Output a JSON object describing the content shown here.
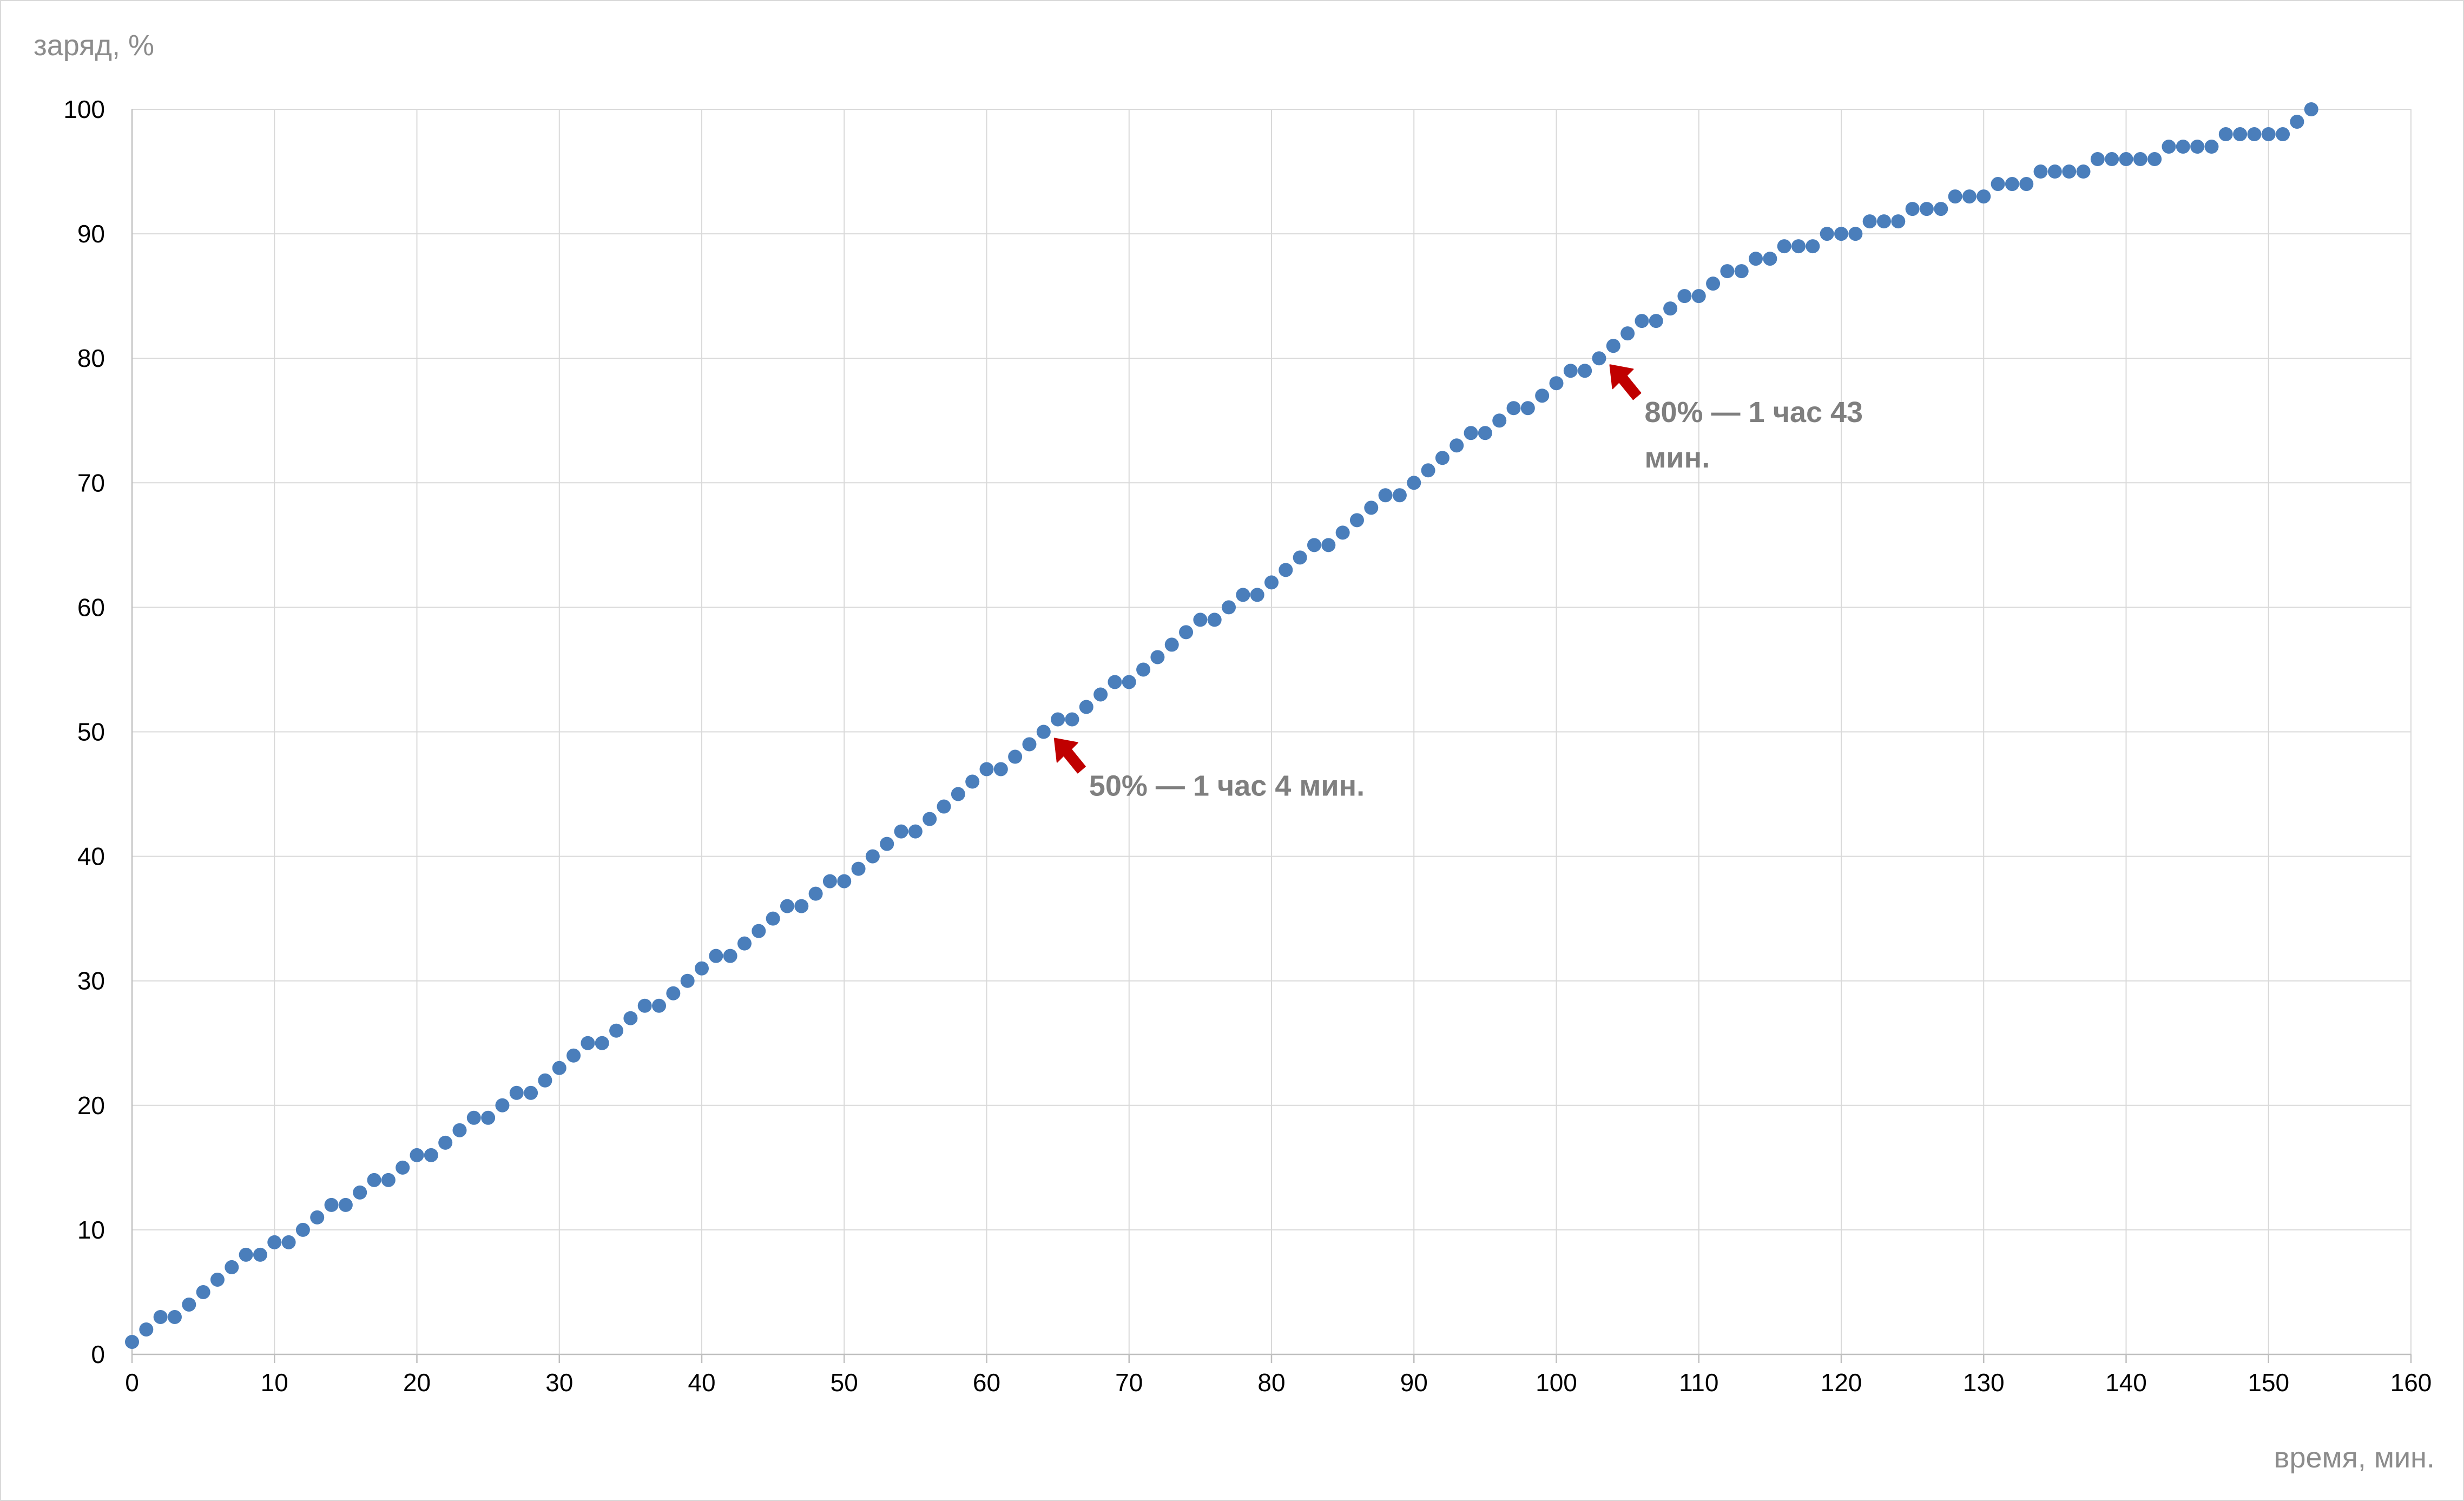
{
  "chart_data": {
    "type": "scatter",
    "xlabel": "время, мин.",
    "ylabel": "заряд, %",
    "xlim": [
      0,
      160
    ],
    "ylim": [
      0,
      100
    ],
    "x_ticks": [
      0,
      10,
      20,
      30,
      40,
      50,
      60,
      70,
      80,
      90,
      100,
      110,
      120,
      130,
      140,
      150,
      160
    ],
    "y_ticks": [
      0,
      10,
      20,
      30,
      40,
      50,
      60,
      70,
      80,
      90,
      100
    ],
    "grid": true,
    "marker_color": "#4a7ebb",
    "annotation_color": "#c00000",
    "series": [
      {
        "x": [
          0,
          1,
          2,
          3,
          4,
          5,
          6,
          7,
          8,
          9,
          10,
          11,
          12,
          13,
          14,
          15,
          16,
          17,
          18,
          19,
          20,
          21,
          22,
          23,
          24,
          25,
          26,
          27,
          28,
          29,
          30,
          31,
          32,
          33,
          34,
          35,
          36,
          37,
          38,
          39,
          40,
          41,
          42,
          43,
          44,
          45,
          46,
          47,
          48,
          49,
          50,
          51,
          52,
          53,
          54,
          55,
          56,
          57,
          58,
          59,
          60,
          61,
          62,
          63,
          64,
          65,
          66,
          67,
          68,
          69,
          70,
          71,
          72,
          73,
          74,
          75,
          76,
          77,
          78,
          79,
          80,
          81,
          82,
          83,
          84,
          85,
          86,
          87,
          88,
          89,
          90,
          91,
          92,
          93,
          94,
          95,
          96,
          97,
          98,
          99,
          100,
          101,
          102,
          103,
          104,
          105,
          106,
          107,
          108,
          109,
          110,
          111,
          112,
          113,
          114,
          115,
          116,
          117,
          118,
          119,
          120,
          121,
          122,
          123,
          124,
          125,
          126,
          127,
          128,
          129,
          130,
          131,
          132,
          133,
          134,
          135,
          136,
          137,
          138,
          139,
          140,
          141,
          142,
          143,
          144,
          145,
          146,
          147,
          148,
          149,
          150,
          151,
          152,
          153
        ],
        "y": [
          1,
          2,
          3,
          3,
          4,
          5,
          6,
          7,
          8,
          8,
          9,
          9,
          10,
          11,
          12,
          12,
          13,
          14,
          14,
          15,
          16,
          16,
          17,
          18,
          19,
          19,
          20,
          21,
          21,
          22,
          23,
          24,
          25,
          25,
          26,
          27,
          28,
          28,
          29,
          30,
          31,
          32,
          32,
          33,
          34,
          35,
          36,
          36,
          37,
          38,
          38,
          39,
          40,
          41,
          42,
          42,
          43,
          44,
          45,
          46,
          47,
          47,
          48,
          49,
          50,
          51,
          51,
          52,
          53,
          54,
          54,
          55,
          56,
          57,
          58,
          59,
          59,
          60,
          61,
          61,
          62,
          63,
          64,
          65,
          65,
          66,
          67,
          68,
          69,
          69,
          70,
          71,
          72,
          73,
          74,
          74,
          75,
          76,
          76,
          77,
          78,
          79,
          79,
          80,
          81,
          82,
          83,
          83,
          84,
          85,
          85,
          86,
          87,
          87,
          88,
          88,
          89,
          89,
          89,
          90,
          90,
          90,
          91,
          91,
          91,
          92,
          92,
          92,
          93,
          93,
          93,
          94,
          94,
          94,
          95,
          95,
          95,
          95,
          96,
          96,
          96,
          96,
          96,
          97,
          97,
          97,
          97,
          98,
          98,
          98,
          98,
          98,
          99,
          100
        ]
      }
    ],
    "annotations": [
      {
        "lines": [
          "50% — 1 час 4 мин."
        ],
        "x": 64,
        "y": 50
      },
      {
        "lines": [
          "80% — 1 час 43",
          "мин."
        ],
        "x": 103,
        "y": 80
      }
    ]
  }
}
